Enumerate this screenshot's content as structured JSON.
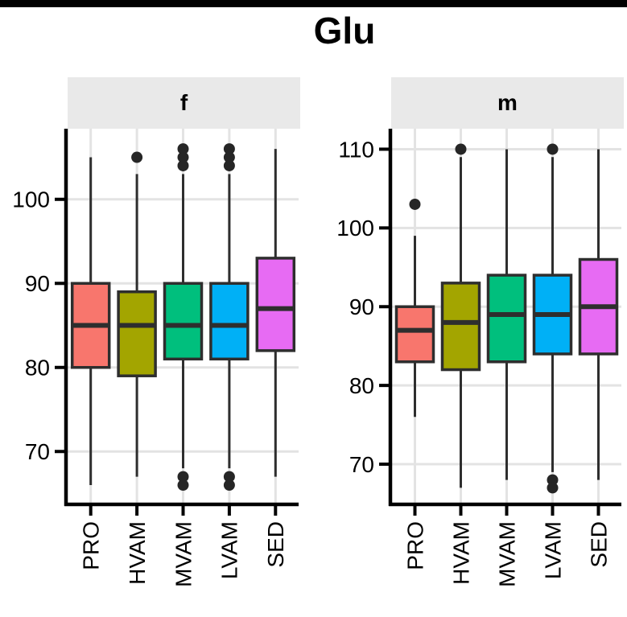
{
  "window": {
    "top_bar_color": "#000000"
  },
  "chart_data": {
    "type": "boxplot",
    "title": "Glu",
    "categories": [
      "PRO",
      "HVAM",
      "MVAM",
      "LVAM",
      "SED"
    ],
    "xlabel": "",
    "ylabel": "",
    "legend": "none",
    "grid": "major-only",
    "x_label_rotation": 90,
    "facets": [
      {
        "label": "f",
        "ylim": [
          63.9,
          108.4
        ],
        "y_ticks": [
          70,
          80,
          90,
          100
        ],
        "boxes": [
          {
            "category": "PRO",
            "color": "#F8766D",
            "whisker_low": 66,
            "q1": 80,
            "median": 85,
            "q3": 90,
            "whisker_high": 105,
            "outliers_high": [],
            "outliers_low": []
          },
          {
            "category": "HVAM",
            "color": "#A3A500",
            "whisker_low": 67,
            "q1": 79,
            "median": 85,
            "q3": 89,
            "whisker_high": 103,
            "outliers_high": [
              105
            ],
            "outliers_low": []
          },
          {
            "category": "MVAM",
            "color": "#00BF7D",
            "whisker_low": 68,
            "q1": 81,
            "median": 85,
            "q3": 90,
            "whisker_high": 103,
            "outliers_high": [
              104,
              105,
              106
            ],
            "outliers_low": [
              67,
              66
            ]
          },
          {
            "category": "LVAM",
            "color": "#00B0F6",
            "whisker_low": 68,
            "q1": 81,
            "median": 85,
            "q3": 90,
            "whisker_high": 103,
            "outliers_high": [
              104,
              105,
              106
            ],
            "outliers_low": [
              67,
              66
            ]
          },
          {
            "category": "SED",
            "color": "#E76BF3",
            "whisker_low": 67,
            "q1": 82,
            "median": 87,
            "q3": 93,
            "whisker_high": 106,
            "outliers_high": [],
            "outliers_low": []
          }
        ]
      },
      {
        "label": "m",
        "ylim": [
          65.1,
          112.6
        ],
        "y_ticks": [
          70,
          80,
          90,
          100,
          110
        ],
        "boxes": [
          {
            "category": "PRO",
            "color": "#F8766D",
            "whisker_low": 76,
            "q1": 83,
            "median": 87,
            "q3": 90,
            "whisker_high": 99,
            "outliers_high": [
              103
            ],
            "outliers_low": []
          },
          {
            "category": "HVAM",
            "color": "#A3A500",
            "whisker_low": 67,
            "q1": 82,
            "median": 88,
            "q3": 93,
            "whisker_high": 109,
            "outliers_high": [
              110
            ],
            "outliers_low": []
          },
          {
            "category": "MVAM",
            "color": "#00BF7D",
            "whisker_low": 68,
            "q1": 83,
            "median": 89,
            "q3": 94,
            "whisker_high": 110,
            "outliers_high": [],
            "outliers_low": []
          },
          {
            "category": "LVAM",
            "color": "#00B0F6",
            "whisker_low": 69,
            "q1": 84,
            "median": 89,
            "q3": 94,
            "whisker_high": 109,
            "outliers_high": [
              110
            ],
            "outliers_low": [
              68,
              67
            ]
          },
          {
            "category": "SED",
            "color": "#E76BF3",
            "whisker_low": 68,
            "q1": 84,
            "median": 90,
            "q3": 96,
            "whisker_high": 110,
            "outliers_high": [],
            "outliers_low": []
          }
        ]
      }
    ],
    "styles": {
      "box_border": "#2e2e2e",
      "median_color": "#2e2e2e",
      "whisker_color": "#2e2e2e",
      "outlier_color": "#262626",
      "axis_color": "#000000",
      "grid_color": "#E3E3E3",
      "strip_bg": "#E9E9E9",
      "strip_text": "#000000",
      "panel_bg": "#FFFFFF",
      "page_bg": "#FFFFFF",
      "tick_label_color": "#000000",
      "title_color": "#000000"
    }
  }
}
